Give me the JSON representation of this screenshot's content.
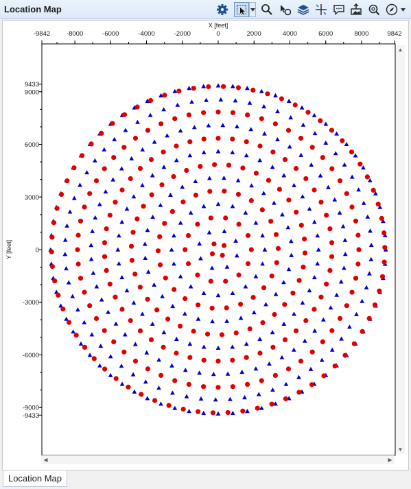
{
  "window": {
    "title": "Location Map",
    "tab_label": "Location Map"
  },
  "toolbar": {
    "icons": [
      "gear-icon",
      "select-pointer-icon",
      "search-icon",
      "cursor-pick-icon",
      "layers-icon",
      "crosshair-icon",
      "comment-icon",
      "export-image-icon",
      "zoom-fit-icon",
      "compass-icon"
    ]
  },
  "colors": {
    "receivers": "#0000cc",
    "sources": "#e00000"
  },
  "chart_data": {
    "type": "scatter",
    "xlabel": "X [feet]",
    "ylabel": "Y [feet]",
    "xlim": [
      -9842,
      9842
    ],
    "ylim": [
      -9433,
      9433
    ],
    "x_ticks": [
      "-9842",
      "-8000",
      "-6000",
      "-4000",
      "-2000",
      "0",
      "2000",
      "4000",
      "6000",
      "8000",
      "9842"
    ],
    "y_ticks": [
      "9433",
      "9000",
      "6000",
      "3000",
      "0",
      "-3000",
      "-6000",
      "-9000",
      "-9433"
    ],
    "series": [
      {
        "marker": "triangle",
        "color": "#0000cc",
        "rings": [
          {
            "radius": 1100,
            "count": 8,
            "phase": 0.2
          },
          {
            "radius": 2600,
            "count": 20,
            "phase": 0.1
          },
          {
            "radius": 4100,
            "count": 32,
            "phase": 0.05
          },
          {
            "radius": 5600,
            "count": 44,
            "phase": 0.0
          },
          {
            "radius": 7100,
            "count": 56,
            "phase": 0.03
          },
          {
            "radius": 8550,
            "count": 66,
            "phase": 0.02
          },
          {
            "radius": 9350,
            "count": 72,
            "phase": 0.0
          }
        ]
      },
      {
        "marker": "circle",
        "color": "#e00000",
        "rings": [
          {
            "radius": 400,
            "count": 4,
            "phase": 0.6
          },
          {
            "radius": 1850,
            "count": 14,
            "phase": 0.0
          },
          {
            "radius": 3350,
            "count": 26,
            "phase": 0.08
          },
          {
            "radius": 4850,
            "count": 38,
            "phase": 0.02
          },
          {
            "radius": 6350,
            "count": 50,
            "phase": 0.05
          },
          {
            "radius": 7850,
            "count": 60,
            "phase": 0.0
          },
          {
            "radius": 9300,
            "count": 70,
            "phase": 0.045
          }
        ]
      }
    ],
    "grid": false,
    "legend": "none"
  }
}
